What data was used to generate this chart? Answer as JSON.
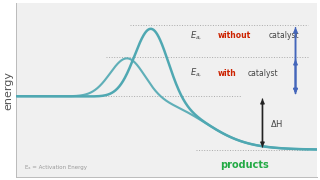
{
  "bg_color": "#f0f0f0",
  "curve_color": "#4fa8b2",
  "curve_lw": 1.8,
  "arrow_color": "#4466bb",
  "dh_arrow_color": "#222222",
  "reactant_energy": 0.5,
  "product_energy": 0.2,
  "peak_with_energy": 0.72,
  "peak_without_energy": 0.9,
  "dotline_color": "#aaaaaa",
  "panel_bg": "#ffffff",
  "text_color_black": "#444444",
  "text_color_red": "#cc2200",
  "text_color_green": "#22aa44",
  "label_ylabel": "energy",
  "label_products": "products",
  "label_footnote": "Eₐ = Activation Energy"
}
